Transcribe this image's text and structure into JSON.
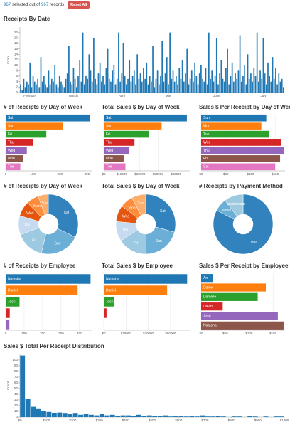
{
  "header": {
    "selected": 967,
    "middle": "selected out of",
    "total": 967,
    "end": "records",
    "button": "Reset All"
  },
  "chart_data": [
    {
      "type": "bar",
      "title": "Receipts By Date",
      "y_label": "Count",
      "color": "#1f77b4",
      "ylim": [
        0,
        24
      ],
      "yticks": [
        0,
        2,
        4,
        6,
        8,
        10,
        12,
        14,
        16,
        18,
        20,
        22
      ],
      "categories": [
        null,
        null,
        null,
        null,
        null,
        null,
        "February",
        null,
        null,
        null,
        null,
        null,
        null,
        null,
        null,
        null,
        null,
        null,
        null,
        null,
        null,
        null,
        null,
        null,
        null,
        null,
        null,
        null,
        null,
        null,
        null,
        null,
        null,
        null,
        "March",
        null,
        null,
        null,
        null,
        null,
        null,
        null,
        null,
        null,
        null,
        null,
        null,
        null,
        null,
        null,
        null,
        null,
        null,
        null,
        null,
        null,
        null,
        null,
        null,
        null,
        null,
        null,
        null,
        null,
        null,
        "April",
        null,
        null,
        null,
        null,
        null,
        null,
        null,
        null,
        null,
        null,
        null,
        null,
        null,
        null,
        null,
        null,
        null,
        null,
        null,
        null,
        null,
        null,
        null,
        null,
        null,
        null,
        null,
        null,
        null,
        "May",
        null,
        null,
        null,
        null,
        null,
        null,
        null,
        null,
        null,
        null,
        null,
        null,
        null,
        null,
        null,
        null,
        null,
        null,
        null,
        null,
        null,
        null,
        null,
        null,
        null,
        null,
        null,
        null,
        null,
        null,
        "June",
        null,
        null,
        null,
        null,
        null,
        null,
        null,
        null,
        null,
        null,
        null,
        null,
        null,
        null,
        null,
        null,
        null,
        null,
        null,
        null,
        null,
        null,
        null,
        null,
        null,
        null,
        null,
        null,
        null,
        "July",
        null,
        null,
        null,
        null,
        null,
        null,
        null,
        null,
        null,
        null,
        null,
        null,
        null
      ],
      "values": [
        3,
        1,
        5,
        2,
        4,
        3,
        11,
        2,
        6,
        4,
        3,
        5,
        2,
        13,
        4,
        6,
        3,
        2,
        8,
        3,
        5,
        4,
        10,
        3,
        2,
        6,
        4,
        3,
        2,
        5,
        7,
        17,
        4,
        3,
        9,
        5,
        2,
        6,
        12,
        4,
        22,
        3,
        6,
        5,
        14,
        8,
        4,
        20,
        5,
        3,
        7,
        11,
        4,
        6,
        3,
        9,
        16,
        5,
        4,
        8,
        10,
        3,
        5,
        22,
        4,
        7,
        18,
        6,
        3,
        5,
        12,
        4,
        6,
        8,
        3,
        14,
        5,
        7,
        4,
        9,
        5,
        11,
        3,
        6,
        4,
        17,
        2,
        5,
        8,
        3,
        6,
        19,
        4,
        7,
        13,
        3,
        22,
        5,
        8,
        4,
        6,
        3,
        9,
        5,
        12,
        4,
        7,
        16,
        3,
        5,
        8,
        4,
        11,
        6,
        3,
        7,
        10,
        5,
        4,
        9,
        3,
        22,
        5,
        8,
        4,
        6,
        20,
        3,
        7,
        12,
        5,
        4,
        9,
        16,
        3,
        6,
        11,
        4,
        7,
        5,
        8,
        21,
        4,
        6,
        10,
        3,
        14,
        5,
        7,
        4,
        9,
        6,
        22,
        4,
        8,
        5,
        20,
        7,
        3,
        11,
        6,
        4,
        13,
        5,
        9,
        3,
        7,
        4,
        5,
        2
      ]
    },
    {
      "type": "hbar",
      "title": "# of Receipts by Day of Week",
      "categories": [
        "Sat",
        "Sun",
        "Fri",
        "Thu",
        "Wed",
        "Mon",
        "Tue"
      ],
      "values": [
        310,
        210,
        150,
        100,
        78,
        65,
        54
      ],
      "colors": [
        "#1f77b4",
        "#ff7f0e",
        "#2ca02c",
        "#d62728",
        "#9467bd",
        "#8c564b",
        "#e377c2"
      ],
      "xlim": [
        0,
        320
      ],
      "xticks": [
        0,
        100,
        200,
        300
      ],
      "grid": true
    },
    {
      "type": "hbar",
      "title": "Total Sales $ by Day of Week",
      "categories": [
        "Sat",
        "Sun",
        "Fri",
        "Thu",
        "Wed",
        "Mon",
        "Tue"
      ],
      "values": [
        46000,
        32000,
        25000,
        17000,
        14000,
        11000,
        12000
      ],
      "colors": [
        "#1f77b4",
        "#ff7f0e",
        "#2ca02c",
        "#d62728",
        "#9467bd",
        "#8c564b",
        "#e377c2"
      ],
      "xlim": [
        0,
        48000
      ],
      "xticks": [
        {
          "value": 0,
          "label": "$0"
        },
        {
          "value": 10000,
          "label": "$10000"
        },
        {
          "value": 20000,
          "label": "$20000"
        },
        {
          "value": 30000,
          "label": "$30000"
        },
        {
          "value": 40000,
          "label": "$40000"
        }
      ],
      "grid": true
    },
    {
      "type": "hbar",
      "title": "Sales $ Per Receipt by Day of Week",
      "categories": [
        "Sun",
        "Mon",
        "Tue",
        "Wed",
        "Thu",
        "Fri",
        "Sat"
      ],
      "values": [
        132,
        122,
        138,
        162,
        168,
        160,
        150
      ],
      "colors": [
        "#1f77b4",
        "#ff7f0e",
        "#2ca02c",
        "#d62728",
        "#9467bd",
        "#8c564b",
        "#e377c2"
      ],
      "xlim": [
        0,
        170
      ],
      "xticks": [
        {
          "value": 0,
          "label": "$0"
        },
        {
          "value": 50,
          "label": "$50"
        },
        {
          "value": 100,
          "label": "$100"
        },
        {
          "value": 150,
          "label": "$150"
        }
      ],
      "grid": true
    },
    {
      "type": "pie",
      "title": "# of Receipts by Day of Week",
      "categories": [
        "Sat",
        "Sun",
        "Fri",
        "Thu",
        "Wed",
        "Mon",
        "Tue"
      ],
      "values": [
        310,
        210,
        150,
        100,
        78,
        65,
        54
      ],
      "colors": [
        "#3182bd",
        "#6baed6",
        "#9ecae1",
        "#c6dbef",
        "#e6550d",
        "#fd8d3c",
        "#fdae6b"
      ]
    },
    {
      "type": "pie",
      "title": "Total Sales $ by Day of Week",
      "categories": [
        "Sat",
        "Sun",
        "Fri",
        "Thu",
        "Wed",
        "Mon",
        "Tue"
      ],
      "values": [
        46000,
        32000,
        25000,
        17000,
        14000,
        11000,
        12000
      ],
      "colors": [
        "#3182bd",
        "#6baed6",
        "#9ecae1",
        "#c6dbef",
        "#e6550d",
        "#fd8d3c",
        "#fdae6b"
      ]
    },
    {
      "type": "pie",
      "title": "# Receipts by Payment Method",
      "categories": [
        "visa",
        "amex",
        "mastercard"
      ],
      "values": [
        800,
        67,
        100
      ],
      "colors": [
        "#3182bd",
        "#6baed6",
        "#9ecae1"
      ]
    },
    {
      "type": "hbar",
      "title": "# of Receipts by Employee",
      "categories": [
        "Natasha",
        "Daniel",
        "Josh",
        null,
        null
      ],
      "values": [
        460,
        390,
        75,
        22,
        20
      ],
      "colors": [
        "#1f77b4",
        "#ff7f0e",
        "#2ca02c",
        "#d62728",
        "#9467bd"
      ],
      "xlim": [
        0,
        470
      ],
      "xticks": [
        0,
        100,
        200,
        300,
        400
      ],
      "grid": true
    },
    {
      "type": "hbar",
      "title": "Total Sales $ by Employee",
      "categories": [
        "Natasha",
        "Daniel",
        "Josh",
        null,
        null
      ],
      "values": [
        75000,
        57000,
        9000,
        2500,
        500
      ],
      "colors": [
        "#1f77b4",
        "#ff7f0e",
        "#2ca02c",
        "#d62728",
        "#9467bd"
      ],
      "xlim": [
        0,
        78000
      ],
      "xticks": [
        {
          "value": 0,
          "label": "$0"
        },
        {
          "value": 20000,
          "label": "$20000"
        },
        {
          "value": 40000,
          "label": "$40000"
        },
        {
          "value": 60000,
          "label": "$60000"
        }
      ],
      "grid": true
    },
    {
      "type": "hbar",
      "title": "Sales $ Per Receipt by Employee",
      "categories": [
        "An",
        "Daniel",
        "Danielle",
        "David",
        "Josh",
        "Natasha"
      ],
      "values": [
        25,
        135,
        118,
        45,
        160,
        172
      ],
      "colors": [
        "#1f77b4",
        "#ff7f0e",
        "#2ca02c",
        "#d62728",
        "#9467bd",
        "#8c564b"
      ],
      "xlim": [
        0,
        175
      ],
      "xticks": [
        {
          "value": 0,
          "label": "$0"
        },
        {
          "value": 50,
          "label": "$50"
        },
        {
          "value": 100,
          "label": "$100"
        },
        {
          "value": 150,
          "label": "$150"
        }
      ],
      "grid": true
    },
    {
      "type": "histogram",
      "title": "Sales $ Total Per Receipt Distribution",
      "y_label": "Count",
      "color": "#1f77b4",
      "xlim": [
        0,
        1000
      ],
      "ylim": [
        0,
        110
      ],
      "yticks": [
        0,
        10,
        20,
        30,
        40,
        50,
        60,
        70,
        80,
        90,
        100
      ],
      "xticks": [
        {
          "value": 0,
          "label": "$0"
        },
        {
          "value": 100,
          "label": "$100"
        },
        {
          "value": 200,
          "label": "$200"
        },
        {
          "value": 300,
          "label": "$300"
        },
        {
          "value": 400,
          "label": "$400"
        },
        {
          "value": 500,
          "label": "$500"
        },
        {
          "value": 600,
          "label": "$600"
        },
        {
          "value": 700,
          "label": "$700"
        },
        {
          "value": 800,
          "label": "$800"
        },
        {
          "value": 900,
          "label": "$900"
        },
        {
          "value": 1000,
          "label": "$1000"
        }
      ],
      "bins": [
        0,
        20,
        40,
        60,
        80,
        100,
        120,
        140,
        160,
        180,
        200,
        220,
        240,
        260,
        280,
        300,
        320,
        340,
        360,
        380,
        400,
        420,
        440,
        460,
        480,
        500,
        520,
        540,
        560,
        580,
        600,
        620,
        640,
        660,
        680,
        700,
        720,
        740,
        760,
        780,
        800,
        820,
        840,
        860,
        880,
        900,
        920,
        940,
        960,
        980,
        1000
      ],
      "values": [
        108,
        32,
        18,
        14,
        10,
        9,
        7,
        8,
        6,
        5,
        6,
        4,
        5,
        4,
        3,
        5,
        3,
        4,
        2,
        3,
        3,
        2,
        4,
        2,
        3,
        2,
        2,
        3,
        1,
        2,
        2,
        1,
        2,
        1,
        3,
        1,
        1,
        2,
        1,
        0,
        1,
        1,
        0,
        2,
        1,
        0,
        1,
        0,
        1,
        1
      ]
    }
  ]
}
